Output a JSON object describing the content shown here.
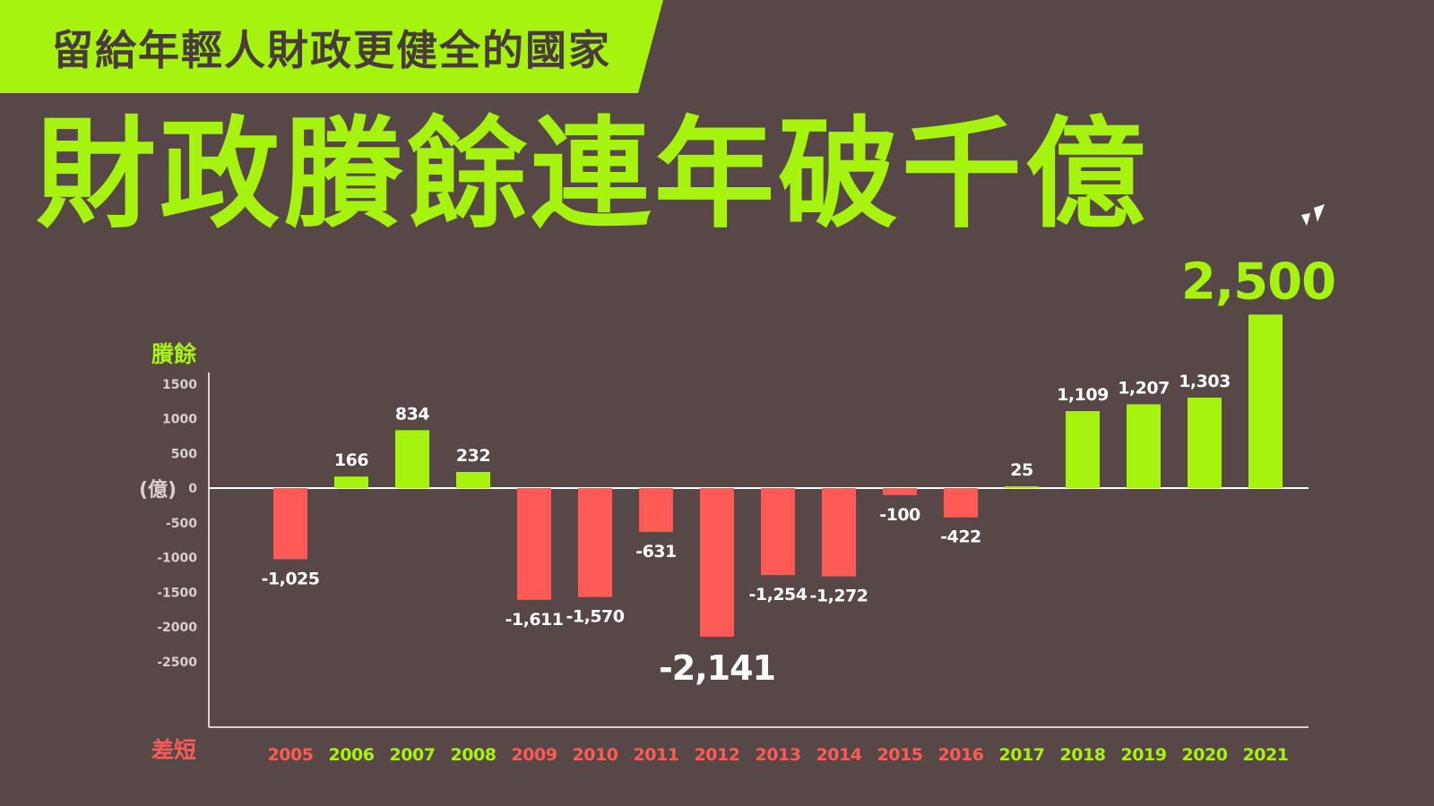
{
  "banner": {
    "text": "留給年輕人財政更健全的國家"
  },
  "headline": {
    "text": "財政賸餘連年破千億"
  },
  "colors": {
    "positive": "#a6f30f",
    "negative": "#ff5a55",
    "background": "#574747",
    "axis": "#d9d0d0"
  },
  "chart_data": {
    "type": "bar",
    "categories": [
      "2005",
      "2006",
      "2007",
      "2008",
      "2009",
      "2010",
      "2011",
      "2012",
      "2013",
      "2014",
      "2015",
      "2016",
      "2017",
      "2018",
      "2019",
      "2020",
      "2021"
    ],
    "values": [
      -1025,
      166,
      834,
      232,
      -1611,
      -1570,
      -631,
      -2141,
      -1254,
      -1272,
      -100,
      -422,
      25,
      1109,
      1207,
      1303,
      2500
    ],
    "value_labels": [
      "-1,025",
      "166",
      "834",
      "232",
      "-1,611",
      "-1,570",
      "-631",
      "-2,141",
      "-1,254",
      "-1,272",
      "-100",
      "-422",
      "25",
      "1,109",
      "1,207",
      "1,303",
      "2,500"
    ],
    "y_ticks": [
      1500,
      1000,
      500,
      0,
      -500,
      -1000,
      -1500,
      -2000,
      -2500
    ],
    "y_tick_labels": [
      "1500",
      "1000",
      "500",
      "0",
      "-500",
      "-1000",
      "-1500",
      "-2000",
      "-2500"
    ],
    "y_top_label": "賸餘",
    "y_bottom_label": "差短",
    "y_unit": "(億)",
    "highlight": [
      "2012",
      "2021"
    ]
  }
}
